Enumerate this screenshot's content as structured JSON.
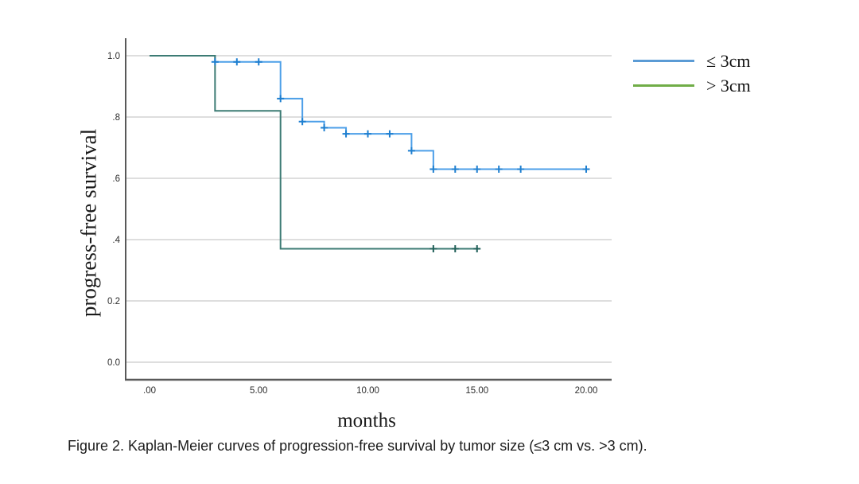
{
  "figure": {
    "caption": "Figure 2. Kaplan-Meier curves of progression-free survival by tumor size (≤3 cm vs. >3 cm)."
  },
  "chart_data": {
    "type": "line",
    "subtype": "kaplan-meier-step-function",
    "title": "",
    "xlabel": "months",
    "ylabel": "progress-free survival",
    "xlim": [
      -1.1,
      21.2
    ],
    "ylim": [
      -0.06,
      1.06
    ],
    "grid": "horizontal-only",
    "x_ticks": {
      "values": [
        0,
        5,
        10,
        15,
        20
      ],
      "labels": [
        ".00",
        "5.00",
        "10.00",
        "15.00",
        "20.00"
      ]
    },
    "y_ticks": {
      "values": [
        0,
        0.2,
        0.4,
        0.6,
        0.8,
        1.0
      ],
      "labels": [
        "0.0",
        "0.2",
        ".4",
        ".6",
        ".8",
        "1.0"
      ]
    },
    "series": [
      {
        "name": "≤ 3cm",
        "color": "#4C9FE8",
        "censor_color": "#1E7FD0",
        "steps": [
          [
            0,
            1.0
          ],
          [
            3,
            0.98
          ],
          [
            6,
            0.86
          ],
          [
            7,
            0.785
          ],
          [
            8,
            0.765
          ],
          [
            9,
            0.745
          ],
          [
            12,
            0.69
          ],
          [
            13,
            0.63
          ]
        ],
        "end_x": 20,
        "censors": [
          [
            3,
            0.98
          ],
          [
            4,
            0.98
          ],
          [
            5,
            0.98
          ],
          [
            6,
            0.86
          ],
          [
            7,
            0.785
          ],
          [
            8,
            0.765
          ],
          [
            9,
            0.745
          ],
          [
            10,
            0.745
          ],
          [
            11,
            0.745
          ],
          [
            12,
            0.69
          ],
          [
            13,
            0.63
          ],
          [
            14,
            0.63
          ],
          [
            15,
            0.63
          ],
          [
            16,
            0.63
          ],
          [
            17,
            0.63
          ],
          [
            20,
            0.63
          ]
        ]
      },
      {
        "name": "> 3cm",
        "color": "#3C7B74",
        "censor_color": "#1F5F58",
        "steps": [
          [
            0,
            1.0
          ],
          [
            3,
            0.82
          ],
          [
            6,
            0.37
          ]
        ],
        "end_x": 15,
        "censors": [
          [
            13,
            0.37
          ],
          [
            14,
            0.37
          ],
          [
            15,
            0.37
          ]
        ]
      }
    ],
    "legend": {
      "position": "top-right",
      "items": [
        {
          "label": "≤ 3cm",
          "color": "#5B9BD5"
        },
        {
          "label": "> 3cm",
          "color": "#70AD47"
        }
      ]
    },
    "colors": {
      "gridline": "#CACACA",
      "axis": "#595959",
      "tick_text": "#2E2E2E"
    }
  }
}
